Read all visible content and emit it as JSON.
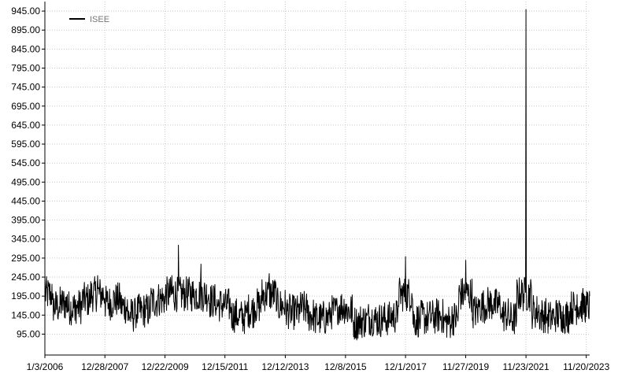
{
  "chart_data": {
    "type": "line",
    "legend": {
      "position": "top-left",
      "entries": [
        "ISEE"
      ]
    },
    "grid": true,
    "x_ticks": [
      "1/3/2006",
      "12/28/2007",
      "12/22/2009",
      "12/15/2011",
      "12/12/2013",
      "12/8/2015",
      "12/1/2017",
      "11/27/2019",
      "11/23/2021",
      "11/20/2023"
    ],
    "x_range": [
      "1/3/2006",
      "12/31/2023"
    ],
    "y_ticks": [
      "945.00",
      "895.00",
      "845.00",
      "795.00",
      "745.00",
      "695.00",
      "645.00",
      "595.00",
      "545.00",
      "495.00",
      "445.00",
      "395.00",
      "345.00",
      "295.00",
      "245.00",
      "195.00",
      "145.00",
      "95.00"
    ],
    "ylim": [
      40,
      970
    ],
    "series": [
      {
        "name": "ISEE",
        "color": "#000000",
        "x": [
          "1/3/2006",
          "4/1/2006",
          "7/1/2006",
          "10/1/2006",
          "1/1/2007",
          "4/1/2007",
          "7/1/2007",
          "10/1/2007",
          "12/28/2007",
          "4/1/2008",
          "7/1/2008",
          "10/1/2008",
          "1/1/2009",
          "4/1/2009",
          "7/1/2009",
          "10/1/2009",
          "12/22/2009",
          "3/15/2010",
          "6/1/2010",
          "9/1/2010",
          "12/1/2010",
          "3/1/2011",
          "6/1/2011",
          "9/1/2011",
          "12/15/2011",
          "3/1/2012",
          "6/1/2012",
          "9/1/2012",
          "12/1/2012",
          "3/1/2013",
          "6/1/2013",
          "9/1/2013",
          "12/12/2013",
          "3/1/2014",
          "6/1/2014",
          "9/1/2014",
          "12/1/2014",
          "3/1/2015",
          "6/1/2015",
          "9/1/2015",
          "12/8/2015",
          "3/1/2016",
          "6/1/2016",
          "9/1/2016",
          "12/1/2016",
          "3/1/2017",
          "6/1/2017",
          "9/1/2017",
          "12/1/2017",
          "3/1/2018",
          "6/1/2018",
          "9/1/2018",
          "12/1/2018",
          "3/1/2019",
          "6/1/2019",
          "9/1/2019",
          "11/27/2019",
          "2/15/2020",
          "5/1/2020",
          "8/1/2020",
          "11/1/2020",
          "2/1/2021",
          "5/1/2021",
          "8/1/2021",
          "11/23/2021",
          "2/1/2022",
          "5/1/2022",
          "8/1/2022",
          "11/1/2022",
          "2/1/2023",
          "5/1/2023",
          "8/1/2023",
          "11/20/2023",
          "12/31/2023"
        ],
        "y": [
          240,
          185,
          150,
          200,
          130,
          205,
          165,
          250,
          190,
          165,
          205,
          130,
          160,
          150,
          165,
          200,
          175,
          250,
          330,
          215,
          190,
          280,
          200,
          165,
          180,
          160,
          130,
          150,
          165,
          175,
          255,
          160,
          180,
          130,
          175,
          150,
          140,
          130,
          145,
          160,
          175,
          140,
          110,
          150,
          125,
          140,
          130,
          155,
          300,
          120,
          145,
          130,
          150,
          135,
          120,
          155,
          290,
          130,
          180,
          160,
          190,
          150,
          140,
          130,
          950,
          160,
          150,
          140,
          135,
          155,
          130,
          200,
          140,
          195
        ]
      }
    ]
  }
}
